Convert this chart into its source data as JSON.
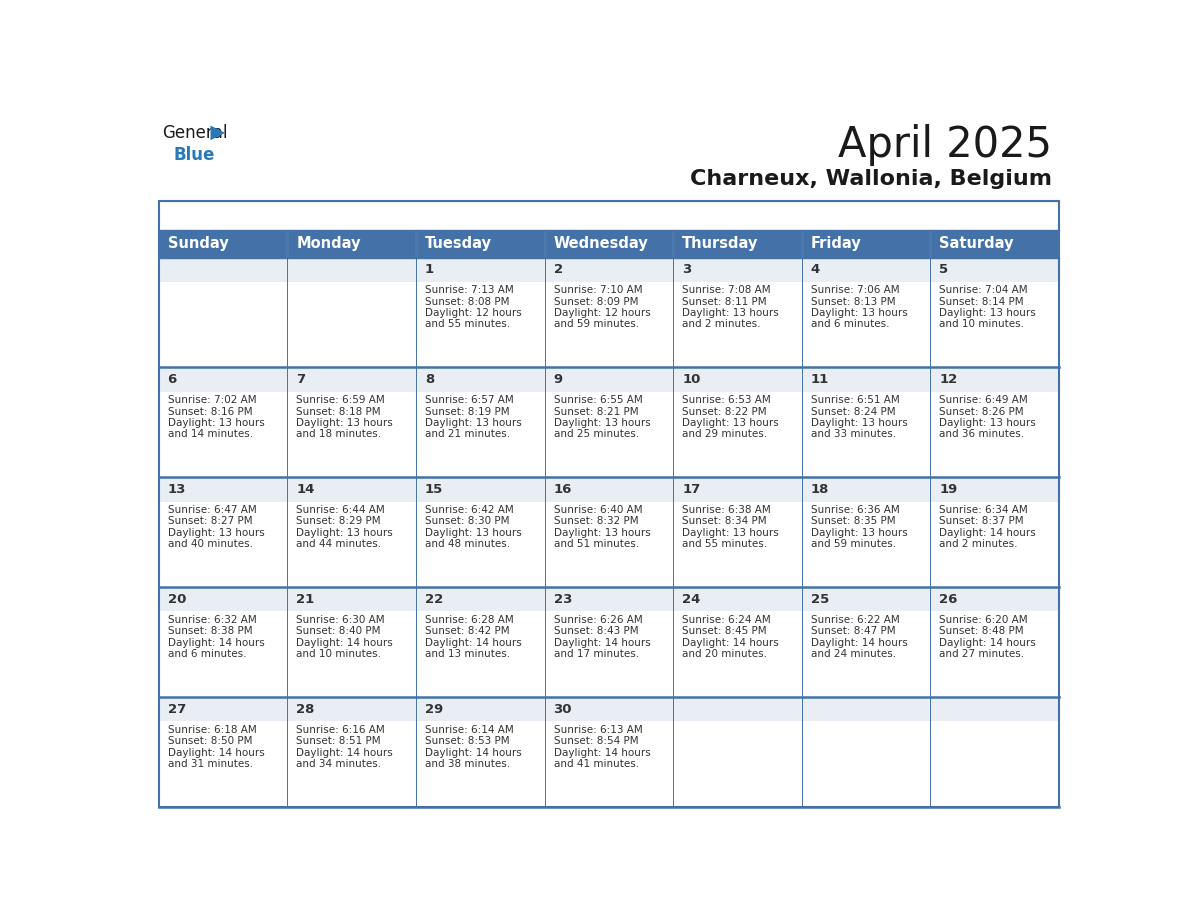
{
  "title": "April 2025",
  "subtitle": "Charneux, Wallonia, Belgium",
  "header_bg": "#4472a8",
  "header_text": "#ffffff",
  "cell_bg_gray": "#e8eef4",
  "cell_bg_white": "#ffffff",
  "border_color": "#4472a8",
  "row_divider_color": "#4472a8",
  "day_headers": [
    "Sunday",
    "Monday",
    "Tuesday",
    "Wednesday",
    "Thursday",
    "Friday",
    "Saturday"
  ],
  "days": [
    {
      "day": 1,
      "col": 2,
      "row": 0,
      "sunrise": "7:13 AM",
      "sunset": "8:08 PM",
      "daylight": "12 hours",
      "daylight2": "and 55 minutes."
    },
    {
      "day": 2,
      "col": 3,
      "row": 0,
      "sunrise": "7:10 AM",
      "sunset": "8:09 PM",
      "daylight": "12 hours",
      "daylight2": "and 59 minutes."
    },
    {
      "day": 3,
      "col": 4,
      "row": 0,
      "sunrise": "7:08 AM",
      "sunset": "8:11 PM",
      "daylight": "13 hours",
      "daylight2": "and 2 minutes."
    },
    {
      "day": 4,
      "col": 5,
      "row": 0,
      "sunrise": "7:06 AM",
      "sunset": "8:13 PM",
      "daylight": "13 hours",
      "daylight2": "and 6 minutes."
    },
    {
      "day": 5,
      "col": 6,
      "row": 0,
      "sunrise": "7:04 AM",
      "sunset": "8:14 PM",
      "daylight": "13 hours",
      "daylight2": "and 10 minutes."
    },
    {
      "day": 6,
      "col": 0,
      "row": 1,
      "sunrise": "7:02 AM",
      "sunset": "8:16 PM",
      "daylight": "13 hours",
      "daylight2": "and 14 minutes."
    },
    {
      "day": 7,
      "col": 1,
      "row": 1,
      "sunrise": "6:59 AM",
      "sunset": "8:18 PM",
      "daylight": "13 hours",
      "daylight2": "and 18 minutes."
    },
    {
      "day": 8,
      "col": 2,
      "row": 1,
      "sunrise": "6:57 AM",
      "sunset": "8:19 PM",
      "daylight": "13 hours",
      "daylight2": "and 21 minutes."
    },
    {
      "day": 9,
      "col": 3,
      "row": 1,
      "sunrise": "6:55 AM",
      "sunset": "8:21 PM",
      "daylight": "13 hours",
      "daylight2": "and 25 minutes."
    },
    {
      "day": 10,
      "col": 4,
      "row": 1,
      "sunrise": "6:53 AM",
      "sunset": "8:22 PM",
      "daylight": "13 hours",
      "daylight2": "and 29 minutes."
    },
    {
      "day": 11,
      "col": 5,
      "row": 1,
      "sunrise": "6:51 AM",
      "sunset": "8:24 PM",
      "daylight": "13 hours",
      "daylight2": "and 33 minutes."
    },
    {
      "day": 12,
      "col": 6,
      "row": 1,
      "sunrise": "6:49 AM",
      "sunset": "8:26 PM",
      "daylight": "13 hours",
      "daylight2": "and 36 minutes."
    },
    {
      "day": 13,
      "col": 0,
      "row": 2,
      "sunrise": "6:47 AM",
      "sunset": "8:27 PM",
      "daylight": "13 hours",
      "daylight2": "and 40 minutes."
    },
    {
      "day": 14,
      "col": 1,
      "row": 2,
      "sunrise": "6:44 AM",
      "sunset": "8:29 PM",
      "daylight": "13 hours",
      "daylight2": "and 44 minutes."
    },
    {
      "day": 15,
      "col": 2,
      "row": 2,
      "sunrise": "6:42 AM",
      "sunset": "8:30 PM",
      "daylight": "13 hours",
      "daylight2": "and 48 minutes."
    },
    {
      "day": 16,
      "col": 3,
      "row": 2,
      "sunrise": "6:40 AM",
      "sunset": "8:32 PM",
      "daylight": "13 hours",
      "daylight2": "and 51 minutes."
    },
    {
      "day": 17,
      "col": 4,
      "row": 2,
      "sunrise": "6:38 AM",
      "sunset": "8:34 PM",
      "daylight": "13 hours",
      "daylight2": "and 55 minutes."
    },
    {
      "day": 18,
      "col": 5,
      "row": 2,
      "sunrise": "6:36 AM",
      "sunset": "8:35 PM",
      "daylight": "13 hours",
      "daylight2": "and 59 minutes."
    },
    {
      "day": 19,
      "col": 6,
      "row": 2,
      "sunrise": "6:34 AM",
      "sunset": "8:37 PM",
      "daylight": "14 hours",
      "daylight2": "and 2 minutes."
    },
    {
      "day": 20,
      "col": 0,
      "row": 3,
      "sunrise": "6:32 AM",
      "sunset": "8:38 PM",
      "daylight": "14 hours",
      "daylight2": "and 6 minutes."
    },
    {
      "day": 21,
      "col": 1,
      "row": 3,
      "sunrise": "6:30 AM",
      "sunset": "8:40 PM",
      "daylight": "14 hours",
      "daylight2": "and 10 minutes."
    },
    {
      "day": 22,
      "col": 2,
      "row": 3,
      "sunrise": "6:28 AM",
      "sunset": "8:42 PM",
      "daylight": "14 hours",
      "daylight2": "and 13 minutes."
    },
    {
      "day": 23,
      "col": 3,
      "row": 3,
      "sunrise": "6:26 AM",
      "sunset": "8:43 PM",
      "daylight": "14 hours",
      "daylight2": "and 17 minutes."
    },
    {
      "day": 24,
      "col": 4,
      "row": 3,
      "sunrise": "6:24 AM",
      "sunset": "8:45 PM",
      "daylight": "14 hours",
      "daylight2": "and 20 minutes."
    },
    {
      "day": 25,
      "col": 5,
      "row": 3,
      "sunrise": "6:22 AM",
      "sunset": "8:47 PM",
      "daylight": "14 hours",
      "daylight2": "and 24 minutes."
    },
    {
      "day": 26,
      "col": 6,
      "row": 3,
      "sunrise": "6:20 AM",
      "sunset": "8:48 PM",
      "daylight": "14 hours",
      "daylight2": "and 27 minutes."
    },
    {
      "day": 27,
      "col": 0,
      "row": 4,
      "sunrise": "6:18 AM",
      "sunset": "8:50 PM",
      "daylight": "14 hours",
      "daylight2": "and 31 minutes."
    },
    {
      "day": 28,
      "col": 1,
      "row": 4,
      "sunrise": "6:16 AM",
      "sunset": "8:51 PM",
      "daylight": "14 hours",
      "daylight2": "and 34 minutes."
    },
    {
      "day": 29,
      "col": 2,
      "row": 4,
      "sunrise": "6:14 AM",
      "sunset": "8:53 PM",
      "daylight": "14 hours",
      "daylight2": "and 38 minutes."
    },
    {
      "day": 30,
      "col": 3,
      "row": 4,
      "sunrise": "6:13 AM",
      "sunset": "8:54 PM",
      "daylight": "14 hours",
      "daylight2": "and 41 minutes."
    }
  ],
  "num_rows": 5,
  "num_cols": 7,
  "logo_general_color": "#1a1a1a",
  "logo_blue_color": "#2979b8",
  "title_color": "#1a1a1a",
  "subtitle_color": "#1a1a1a"
}
